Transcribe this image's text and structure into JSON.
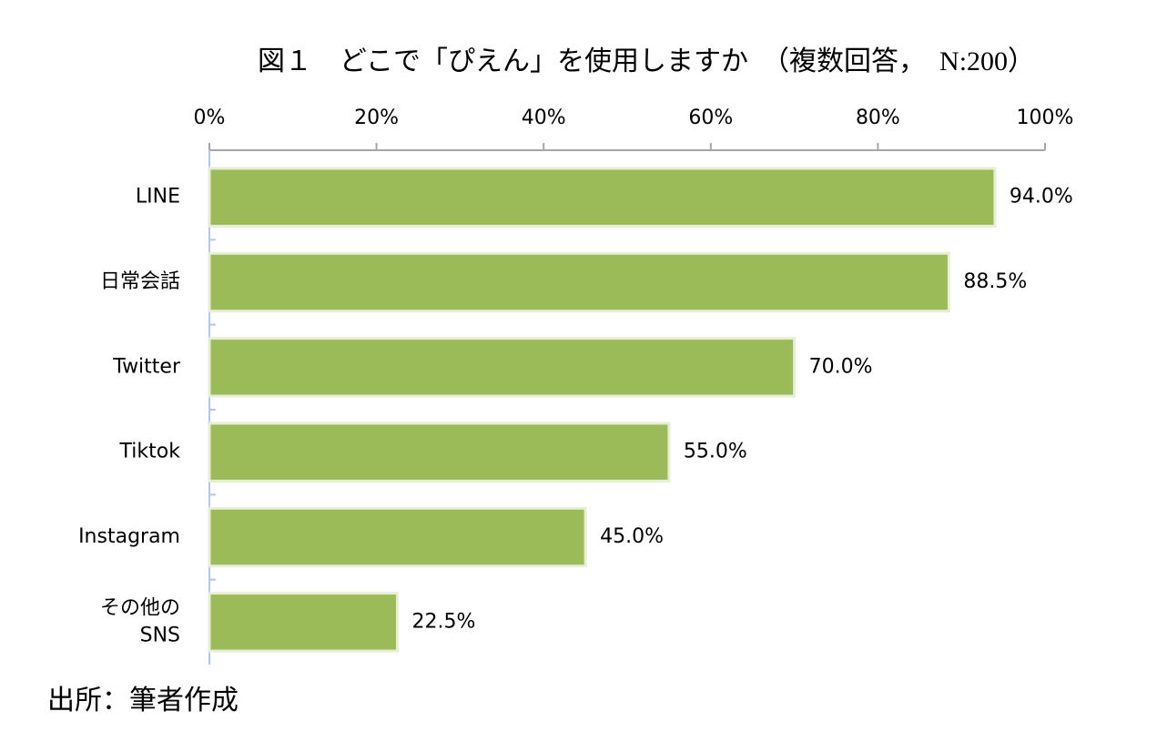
{
  "chart_data": {
    "type": "bar",
    "orientation": "horizontal",
    "title": "図１　どこで「ぴえん」を使用しますか　（複数回答，　N:200）",
    "source": "出所：筆者作成",
    "categories": [
      "LINE",
      "日常会話",
      "Twitter",
      "Tiktok",
      "Instagram",
      "その他の\nSNS"
    ],
    "values": [
      94.0,
      88.5,
      70.0,
      55.0,
      45.0,
      22.5
    ],
    "value_labels": [
      "94.0%",
      "88.5%",
      "70.0%",
      "55.0%",
      "45.0%",
      "22.5%"
    ],
    "color": "#9bbb59",
    "xlim": [
      0,
      100
    ],
    "xticks": [
      {
        "value": 0,
        "label": "0%"
      },
      {
        "value": 20,
        "label": "20%"
      },
      {
        "value": 40,
        "label": "40%"
      },
      {
        "value": 60,
        "label": "60%"
      },
      {
        "value": 80,
        "label": "80%"
      },
      {
        "value": 100,
        "label": "100%"
      }
    ],
    "grid": false
  }
}
